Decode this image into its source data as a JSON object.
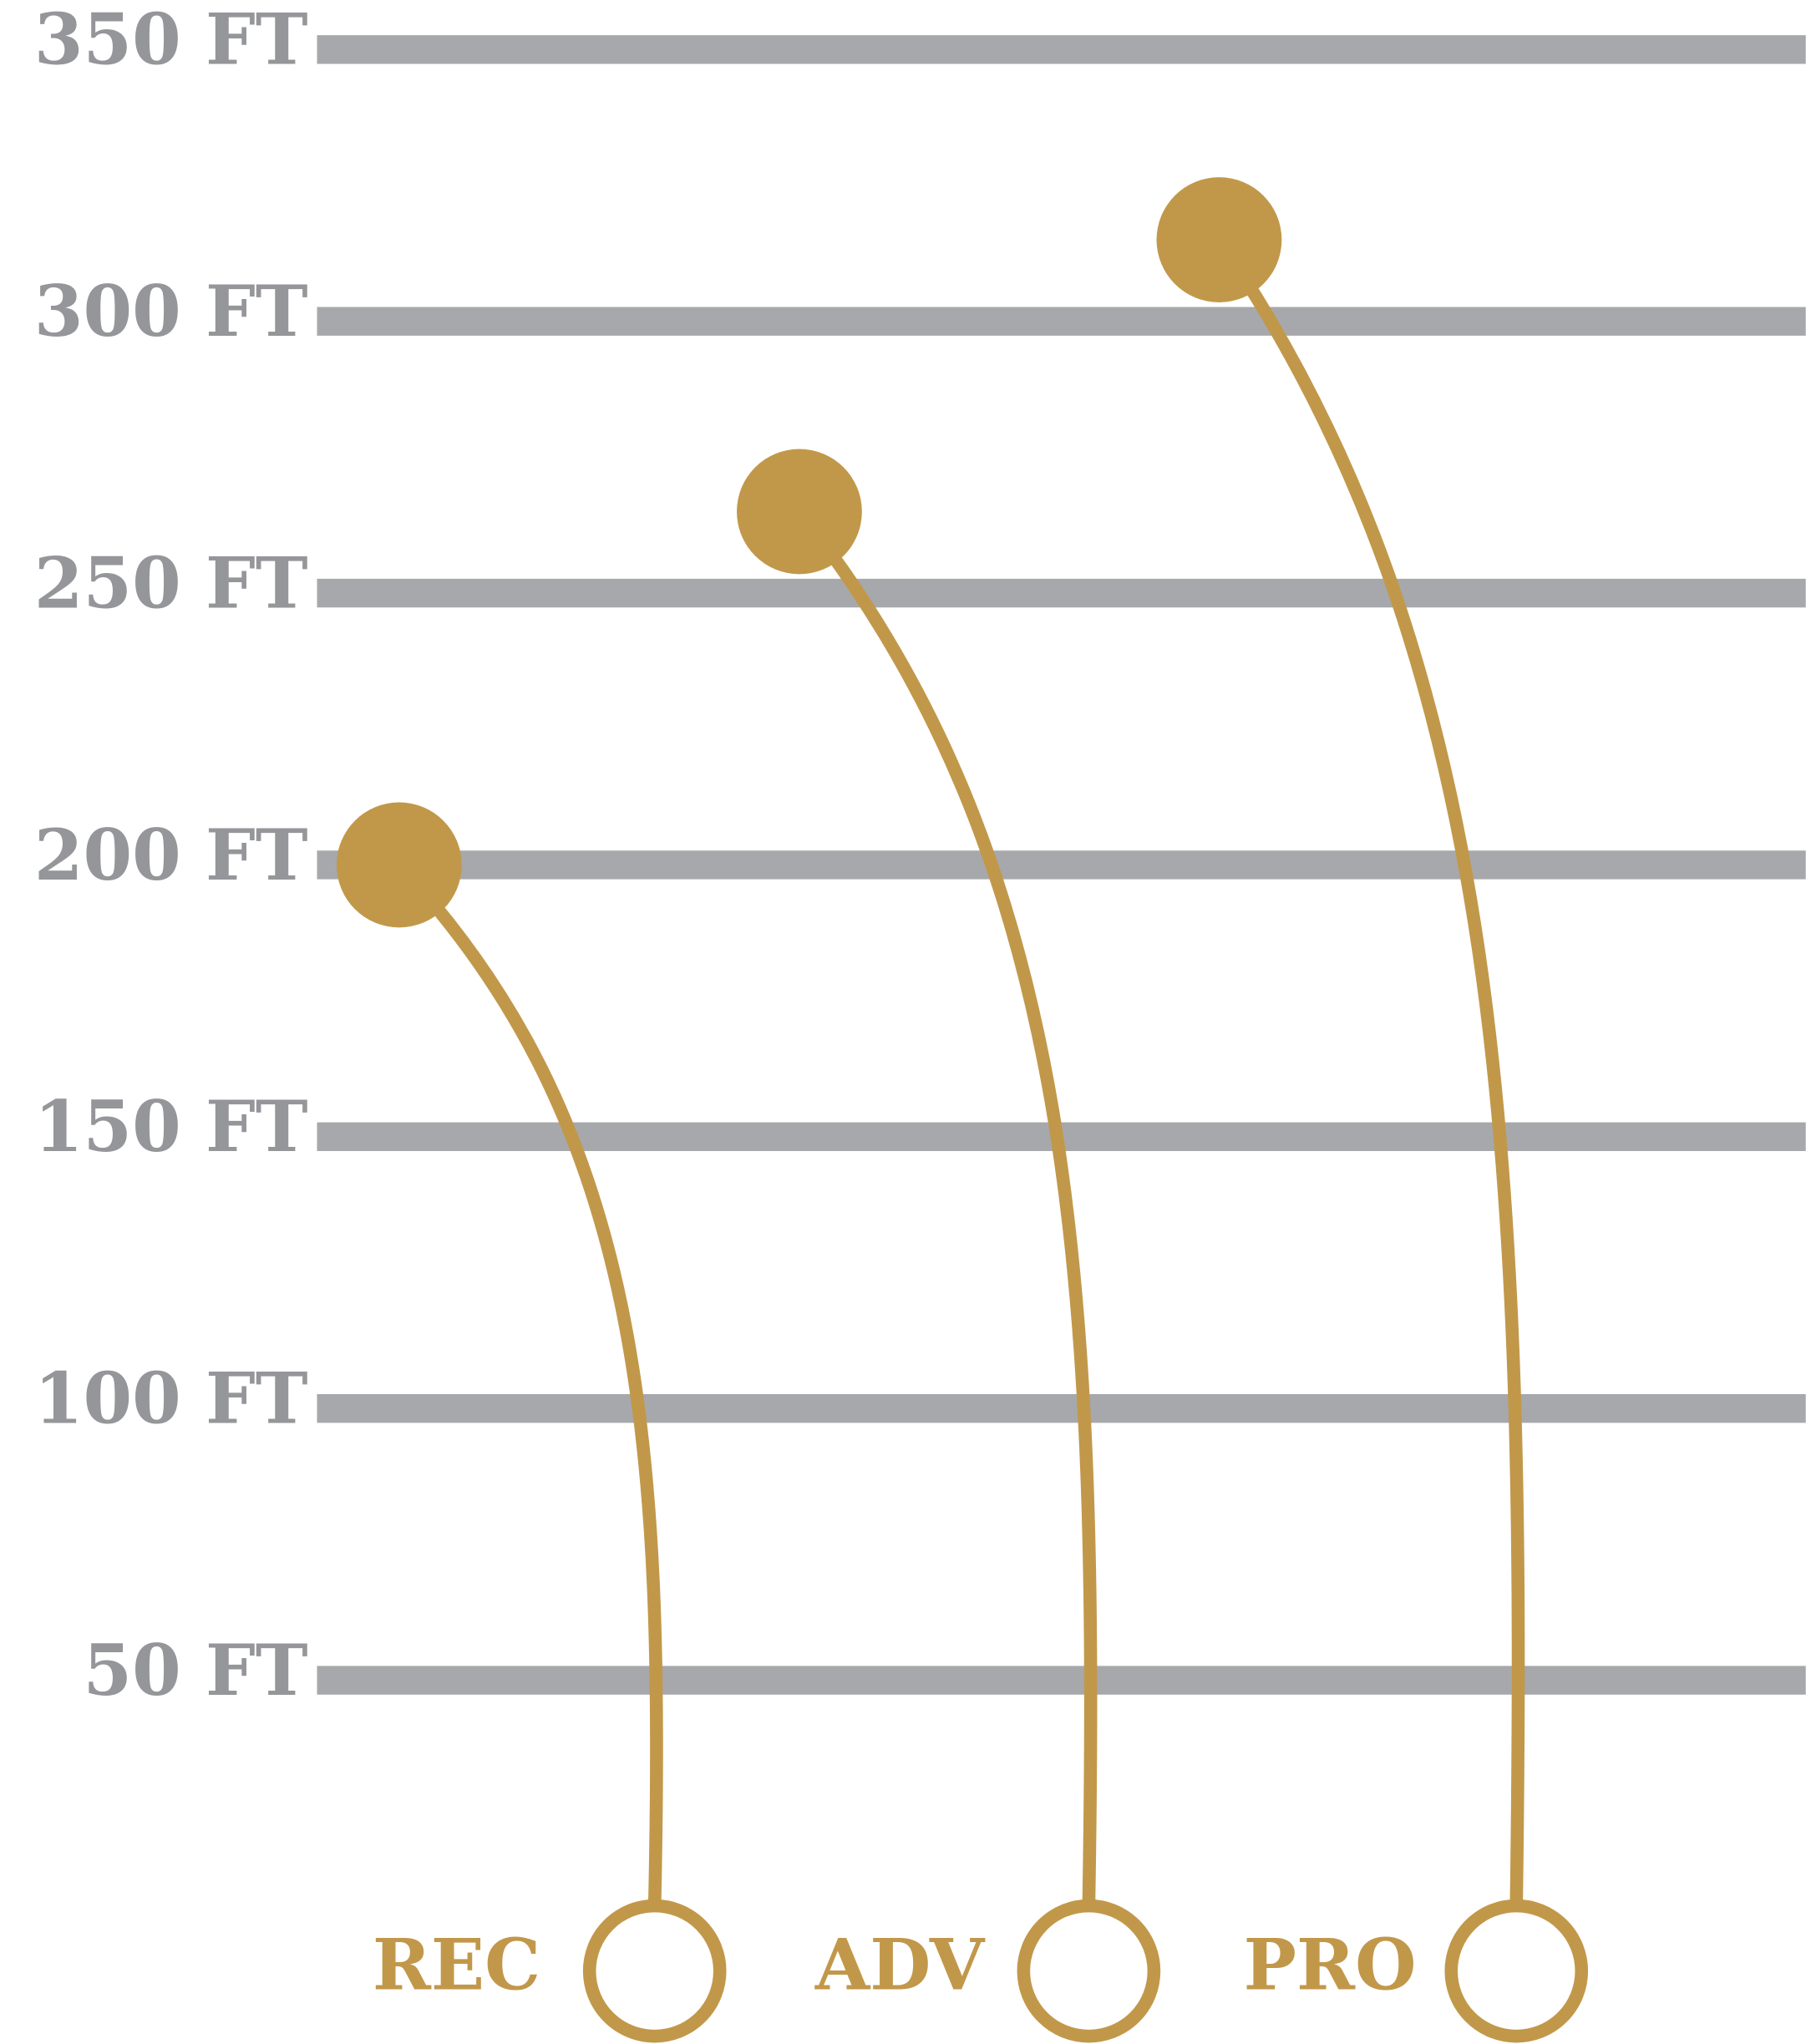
{
  "chart_data": {
    "type": "lollipop",
    "categories": [
      "REC",
      "ADV",
      "PRO"
    ],
    "values": [
      200,
      265,
      315
    ],
    "color": "#c1984a",
    "grid_color": "#a7a8ab",
    "ylim": [
      0,
      350
    ],
    "yticks": [
      {
        "value": 50,
        "label": "50 FT"
      },
      {
        "value": 100,
        "label": "100 FT"
      },
      {
        "value": 150,
        "label": "150 FT"
      },
      {
        "value": 200,
        "label": "200 FT"
      },
      {
        "value": 250,
        "label": "250 FT"
      },
      {
        "value": 300,
        "label": "300 FT"
      },
      {
        "value": 350,
        "label": "350 FT"
      }
    ],
    "grid": true
  }
}
